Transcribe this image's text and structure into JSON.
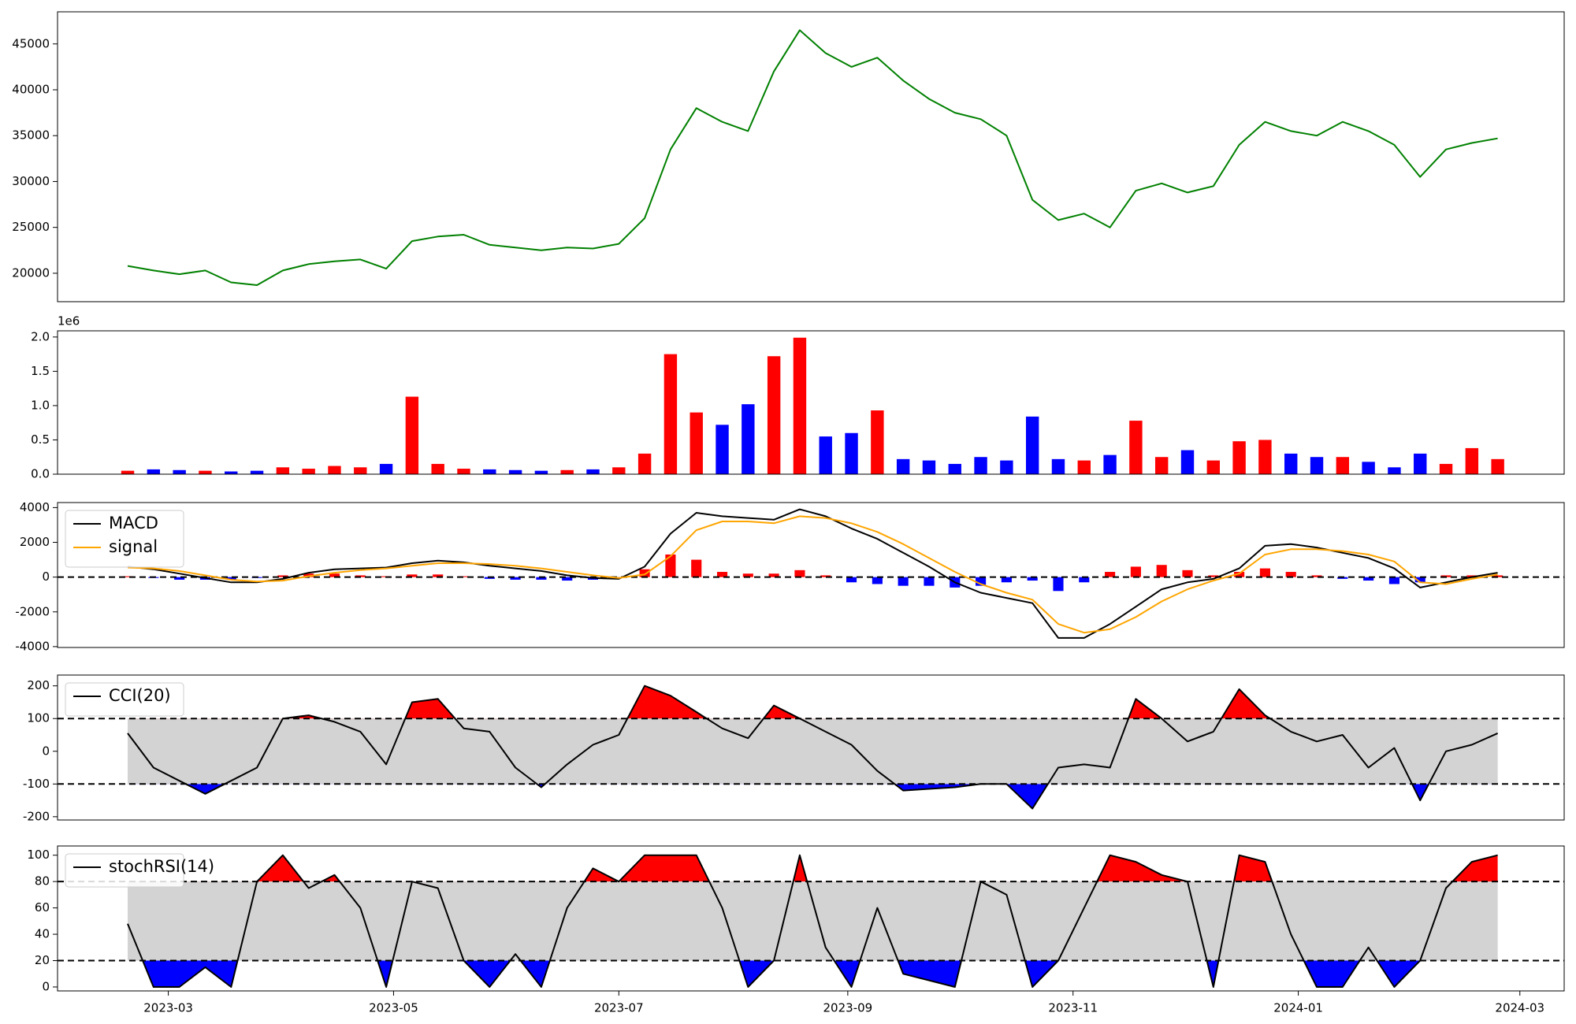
{
  "chart_data": [
    {
      "type": "line",
      "x": [
        "2023-02-18",
        "2023-02-25",
        "2023-03-04",
        "2023-03-11",
        "2023-03-18",
        "2023-03-25",
        "2023-04-01",
        "2023-04-08",
        "2023-04-15",
        "2023-04-22",
        "2023-04-29",
        "2023-05-06",
        "2023-05-13",
        "2023-05-20",
        "2023-05-27",
        "2023-06-03",
        "2023-06-10",
        "2023-06-17",
        "2023-06-24",
        "2023-07-01",
        "2023-07-08",
        "2023-07-15",
        "2023-07-22",
        "2023-07-29",
        "2023-08-05",
        "2023-08-12",
        "2023-08-19",
        "2023-08-26",
        "2023-09-02",
        "2023-09-09",
        "2023-09-16",
        "2023-09-23",
        "2023-09-30",
        "2023-10-07",
        "2023-10-14",
        "2023-10-21",
        "2023-10-28",
        "2023-11-04",
        "2023-11-11",
        "2023-11-18",
        "2023-11-25",
        "2023-12-02",
        "2023-12-09",
        "2023-12-16",
        "2023-12-23",
        "2023-12-30",
        "2024-01-06",
        "2024-01-13",
        "2024-01-20",
        "2024-01-27",
        "2024-02-03",
        "2024-02-10",
        "2024-02-17",
        "2024-02-24"
      ],
      "xlim": [
        "2023-01-30",
        "2024-03-13"
      ],
      "series": [
        {
          "color": "green",
          "values": [
            20800,
            20300,
            19900,
            20300,
            19000,
            18700,
            20300,
            21000,
            21300,
            21500,
            20500,
            23500,
            24000,
            24200,
            23100,
            22800,
            22500,
            22800,
            22700,
            23200,
            26000,
            33500,
            38000,
            36500,
            35500,
            42000,
            46500,
            44000,
            42500,
            43500,
            41000,
            39000,
            37500,
            36800,
            35000,
            28000,
            25800,
            26500,
            25000,
            29000,
            29800,
            28800,
            29500,
            34000,
            36500,
            35500,
            35000,
            36500,
            35500,
            34000,
            30500,
            33500,
            34200,
            34700
          ]
        }
      ],
      "ylim": [
        16900,
        48500
      ],
      "yticks": [
        20000,
        25000,
        30000,
        35000,
        40000,
        45000
      ]
    },
    {
      "type": "bar",
      "offset_label": "1e6",
      "up_color": "red",
      "down_color": "blue",
      "values": [
        0.05,
        0.07,
        0.06,
        0.05,
        0.04,
        0.05,
        0.1,
        0.08,
        0.12,
        0.1,
        0.15,
        1.13,
        0.15,
        0.08,
        0.07,
        0.06,
        0.05,
        0.06,
        0.07,
        0.1,
        0.3,
        1.75,
        0.9,
        0.72,
        1.02,
        1.72,
        1.99,
        0.55,
        0.6,
        0.93,
        0.22,
        0.2,
        0.15,
        0.25,
        0.2,
        0.84,
        0.22,
        0.2,
        0.28,
        0.78,
        0.25,
        0.35,
        0.2,
        0.48,
        0.5,
        0.3,
        0.25,
        0.25,
        0.18,
        0.1,
        0.3,
        0.15,
        0.38,
        0.22
      ],
      "ylim": [
        0,
        2.09
      ],
      "yticks": [
        {
          "value": 0,
          "label": "0.0"
        },
        0.5,
        {
          "value": 1,
          "label": "1.0"
        },
        1.5,
        {
          "value": 2,
          "label": "2.0"
        }
      ]
    },
    {
      "type": "macd",
      "legend": "upper left",
      "up_color": "red",
      "down_color": "blue",
      "zero_line": 0,
      "series": [
        {
          "name": "MACD",
          "color": "black",
          "values": [
            600,
            450,
            200,
            -50,
            -300,
            -300,
            -100,
            250,
            450,
            500,
            550,
            800,
            950,
            850,
            650,
            500,
            350,
            100,
            -50,
            -100,
            600,
            2500,
            3700,
            3500,
            3400,
            3300,
            3900,
            3500,
            2800,
            2200,
            1400,
            600,
            -300,
            -900,
            -1200,
            -1500,
            -3500,
            -3500,
            -2700,
            -1700,
            -700,
            -300,
            -100,
            500,
            1800,
            1900,
            1700,
            1400,
            1100,
            500,
            -600,
            -300,
            0,
            250
          ]
        },
        {
          "name": "signal",
          "color": "orange",
          "values": [
            550,
            500,
            350,
            100,
            -150,
            -250,
            -200,
            50,
            250,
            400,
            500,
            650,
            800,
            800,
            750,
            650,
            500,
            300,
            100,
            -50,
            150,
            1200,
            2700,
            3200,
            3200,
            3100,
            3500,
            3400,
            3100,
            2600,
            1900,
            1100,
            300,
            -400,
            -900,
            -1300,
            -2700,
            -3200,
            -3000,
            -2300,
            -1400,
            -700,
            -200,
            200,
            1300,
            1600,
            1600,
            1500,
            1300,
            900,
            -300,
            -400,
            -100,
            150
          ]
        }
      ],
      "histogram": [
        50,
        -50,
        -150,
        -150,
        -150,
        -50,
        100,
        200,
        200,
        100,
        50,
        150,
        150,
        50,
        -100,
        -150,
        -150,
        -200,
        -150,
        -50,
        450,
        1300,
        1000,
        300,
        200,
        200,
        400,
        100,
        -300,
        -400,
        -500,
        -500,
        -600,
        -500,
        -300,
        -200,
        -800,
        -300,
        300,
        600,
        700,
        400,
        100,
        300,
        500,
        300,
        100,
        -100,
        -200,
        -400,
        -300,
        100,
        100,
        100
      ],
      "ylim": [
        -4050,
        4290
      ],
      "yticks": [
        -4000,
        -2000,
        0,
        2000,
        4000
      ]
    },
    {
      "type": "oscillator",
      "legend": "upper left",
      "thresholds": [
        100,
        -100
      ],
      "above_color": "red",
      "below_color": "blue",
      "between_color": "lightgray",
      "series": [
        {
          "name": "CCI(20)",
          "color": "black",
          "values": [
            55,
            -50,
            -90,
            -130,
            -90,
            -50,
            100,
            110,
            90,
            60,
            -40,
            150,
            160,
            70,
            60,
            -50,
            -110,
            -40,
            20,
            50,
            200,
            170,
            120,
            70,
            40,
            140,
            100,
            60,
            20,
            -60,
            -120,
            -115,
            -110,
            -100,
            -100,
            -175,
            -50,
            -40,
            -50,
            160,
            100,
            30,
            60,
            190,
            110,
            60,
            30,
            50,
            -50,
            10,
            -150,
            0,
            20,
            55
          ]
        }
      ],
      "ylim": [
        -210,
        233
      ],
      "yticks": [
        -200,
        -100,
        0,
        100,
        200
      ]
    },
    {
      "type": "oscillator",
      "legend": "upper left",
      "thresholds": [
        80,
        20
      ],
      "above_color": "red",
      "below_color": "blue",
      "between_color": "lightgray",
      "series": [
        {
          "name": "stochRSI(14)",
          "color": "black",
          "values": [
            48,
            0,
            0,
            15,
            0,
            80,
            100,
            75,
            85,
            60,
            0,
            80,
            75,
            20,
            0,
            25,
            0,
            60,
            90,
            80,
            100,
            100,
            100,
            60,
            0,
            20,
            100,
            30,
            0,
            60,
            10,
            5,
            0,
            80,
            70,
            0,
            20,
            60,
            100,
            95,
            85,
            80,
            0,
            100,
            95,
            40,
            0,
            0,
            30,
            0,
            20,
            75,
            95,
            100
          ]
        }
      ],
      "ylim": [
        -3,
        107
      ],
      "yticks": [
        0,
        20,
        40,
        60,
        80,
        100
      ],
      "xticks": [
        {
          "value": "2023-03-01",
          "label": "2023-03"
        },
        {
          "value": "2023-05-01",
          "label": "2023-05"
        },
        {
          "value": "2023-07-01",
          "label": "2023-07"
        },
        {
          "value": "2023-09-01",
          "label": "2023-09"
        },
        {
          "value": "2023-11-01",
          "label": "2023-11"
        },
        {
          "value": "2024-01-01",
          "label": "2024-01"
        },
        {
          "value": "2024-03-01",
          "label": "2024-03"
        }
      ]
    }
  ]
}
